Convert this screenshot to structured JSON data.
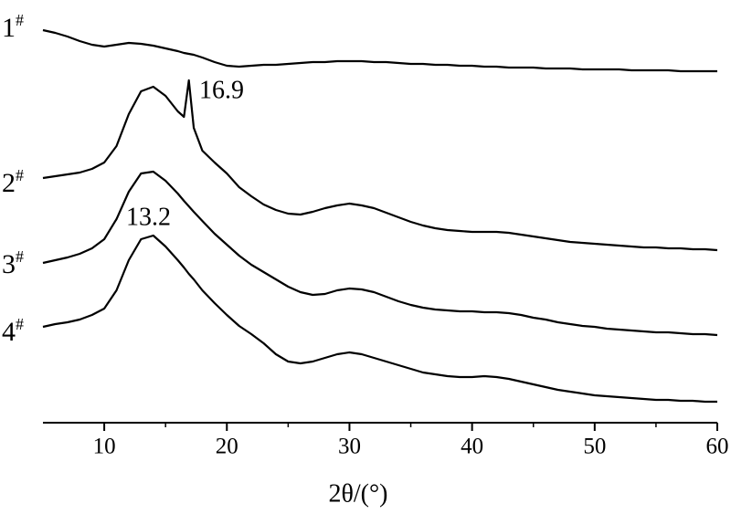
{
  "chart_data": {
    "type": "line",
    "x_label": "2θ/(°)",
    "x": [
      5,
      6,
      7,
      8,
      9,
      10,
      11,
      12,
      13,
      14,
      15,
      16,
      16.5,
      16.9,
      17.3,
      18,
      19,
      20,
      21,
      22,
      23,
      24,
      25,
      26,
      27,
      28,
      29,
      30,
      31,
      32,
      33,
      34,
      35,
      36,
      37,
      38,
      39,
      40,
      41,
      42,
      43,
      44,
      45,
      46,
      47,
      48,
      49,
      50,
      51,
      52,
      53,
      54,
      55,
      56,
      57,
      58,
      59,
      60
    ],
    "series": [
      {
        "name": "1#",
        "color": "#000000",
        "values": [
          430,
          427,
          423,
          418,
          414,
          412,
          414,
          416,
          415,
          413,
          410,
          407,
          405,
          404,
          403,
          400,
          395,
          391,
          390,
          391,
          392,
          392,
          393,
          394,
          395,
          395,
          396,
          396,
          396,
          395,
          395,
          394,
          393,
          393,
          392,
          392,
          391,
          391,
          390,
          390,
          389,
          389,
          389,
          388,
          388,
          388,
          387,
          387,
          387,
          387,
          386,
          386,
          386,
          386,
          385,
          385,
          385,
          385
        ]
      },
      {
        "name": "2#",
        "color": "#000000",
        "values": [
          268,
          270,
          272,
          274,
          278,
          285,
          303,
          338,
          363,
          368,
          358,
          341,
          335,
          375,
          323,
          298,
          285,
          273,
          258,
          248,
          239,
          233,
          229,
          228,
          231,
          235,
          238,
          240,
          238,
          235,
          230,
          225,
          220,
          216,
          213,
          211,
          210,
          209,
          209,
          209,
          208,
          206,
          204,
          202,
          200,
          198,
          197,
          196,
          195,
          194,
          193,
          192,
          192,
          191,
          191,
          190,
          190,
          189
        ]
      },
      {
        "name": "3#",
        "color": "#000000",
        "values": [
          175,
          178,
          181,
          185,
          191,
          201,
          223,
          253,
          273,
          275,
          265,
          251,
          243,
          237,
          231,
          221,
          207,
          195,
          183,
          173,
          165,
          157,
          149,
          143,
          140,
          141,
          145,
          147,
          146,
          143,
          138,
          133,
          129,
          126,
          124,
          123,
          122,
          122,
          121,
          121,
          120,
          118,
          115,
          113,
          110,
          108,
          106,
          105,
          103,
          102,
          101,
          100,
          99,
          99,
          98,
          97,
          97,
          96
        ]
      },
      {
        "name": "4#",
        "color": "#000000",
        "values": [
          105,
          108,
          110,
          113,
          118,
          125,
          145,
          178,
          201,
          205,
          193,
          178,
          170,
          163,
          157,
          145,
          131,
          118,
          106,
          97,
          87,
          75,
          67,
          65,
          67,
          71,
          75,
          77,
          75,
          71,
          67,
          63,
          59,
          55,
          53,
          51,
          50,
          50,
          51,
          50,
          48,
          45,
          42,
          39,
          36,
          34,
          32,
          30,
          29,
          28,
          27,
          26,
          25,
          25,
          24,
          24,
          23,
          23
        ]
      }
    ],
    "annotations": [
      "16.9",
      "13.2"
    ],
    "xlim": [
      5,
      60
    ],
    "xticks": [
      10,
      20,
      30,
      40,
      50,
      60
    ],
    "minor_xticks": [
      15,
      25,
      35,
      45,
      55
    ],
    "ylim": [
      0,
      450
    ]
  }
}
